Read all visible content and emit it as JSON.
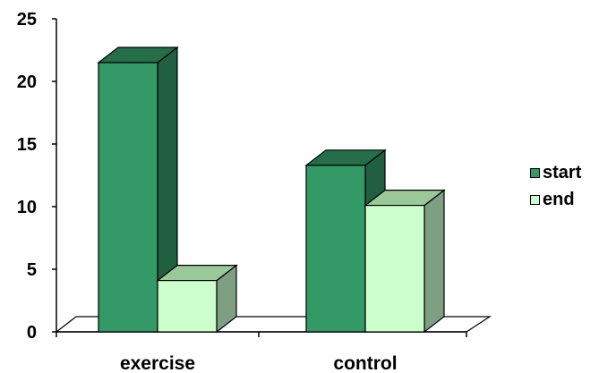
{
  "chart_data": {
    "type": "bar",
    "style": "3d-clustered-column",
    "categories": [
      "exercise",
      "control"
    ],
    "series": [
      {
        "name": "start",
        "values": [
          21.5,
          13.3
        ],
        "color": "#339966"
      },
      {
        "name": "end",
        "values": [
          4.1,
          10.1
        ],
        "color": "#ccffcc"
      }
    ],
    "ylim": [
      0,
      25
    ],
    "yticks": [
      "0",
      "5",
      "10",
      "15",
      "20",
      "25"
    ],
    "grid": false,
    "legend_position": "right"
  }
}
